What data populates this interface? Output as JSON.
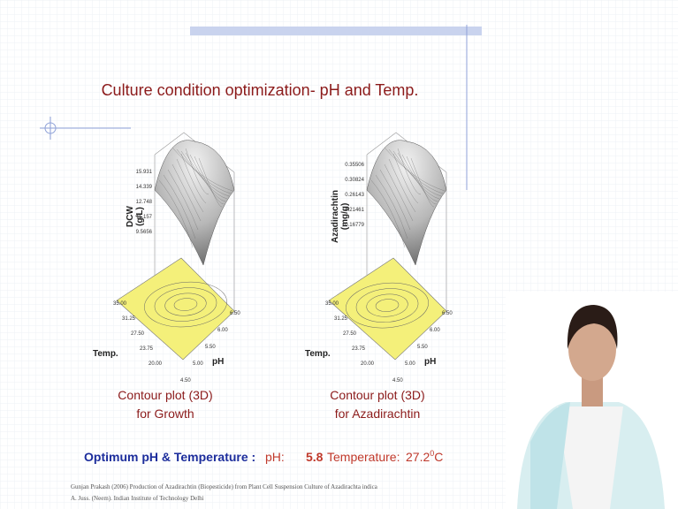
{
  "title": "Culture condition optimization- pH and Temp.",
  "plots": [
    {
      "z_label": [
        "DCW",
        "(g/L)"
      ],
      "z_ticks": [
        "15.931",
        "14.339",
        "12.748",
        "11.157",
        "9.5656"
      ],
      "temp_label": "Temp.",
      "temp_ticks": [
        "35.00",
        "31.25",
        "27.50",
        "23.75",
        "20.00"
      ],
      "ph_label": "pH",
      "ph_ticks": [
        "4.50",
        "5.00",
        "5.50",
        "6.00",
        "6.50"
      ],
      "caption": [
        "Contour plot (3D)",
        "for Growth"
      ]
    },
    {
      "z_label": [
        "Azadirachtin",
        "(mg/g)"
      ],
      "z_ticks": [
        "0.35506",
        "0.30824",
        "0.26143",
        "0.21461",
        "0.16779"
      ],
      "temp_label": "Temp.",
      "temp_ticks": [
        "35.00",
        "31.25",
        "27.50",
        "23.75",
        "20.00"
      ],
      "ph_label": "pH",
      "ph_ticks": [
        "4.50",
        "5.00",
        "5.50",
        "6.00",
        "6.50"
      ],
      "caption": [
        "Contour plot (3D)",
        "for Azadirachtin"
      ]
    }
  ],
  "optimum": {
    "label": "Optimum pH & Temperature :",
    "ph_label": "pH:",
    "ph_value": "5.8",
    "temp_label": "Temperature:",
    "temp_value": "27.2",
    "temp_sup": "0",
    "temp_unit": "C"
  },
  "citation": [
    "Gunjan Prakash (2006) Production of Azadirachtin (Biopesticide) from Plant Cell Suspension Culture of Azadirachta indica",
    "A. Juss. (Neem). Indian Institute of Technology Delhi"
  ]
}
